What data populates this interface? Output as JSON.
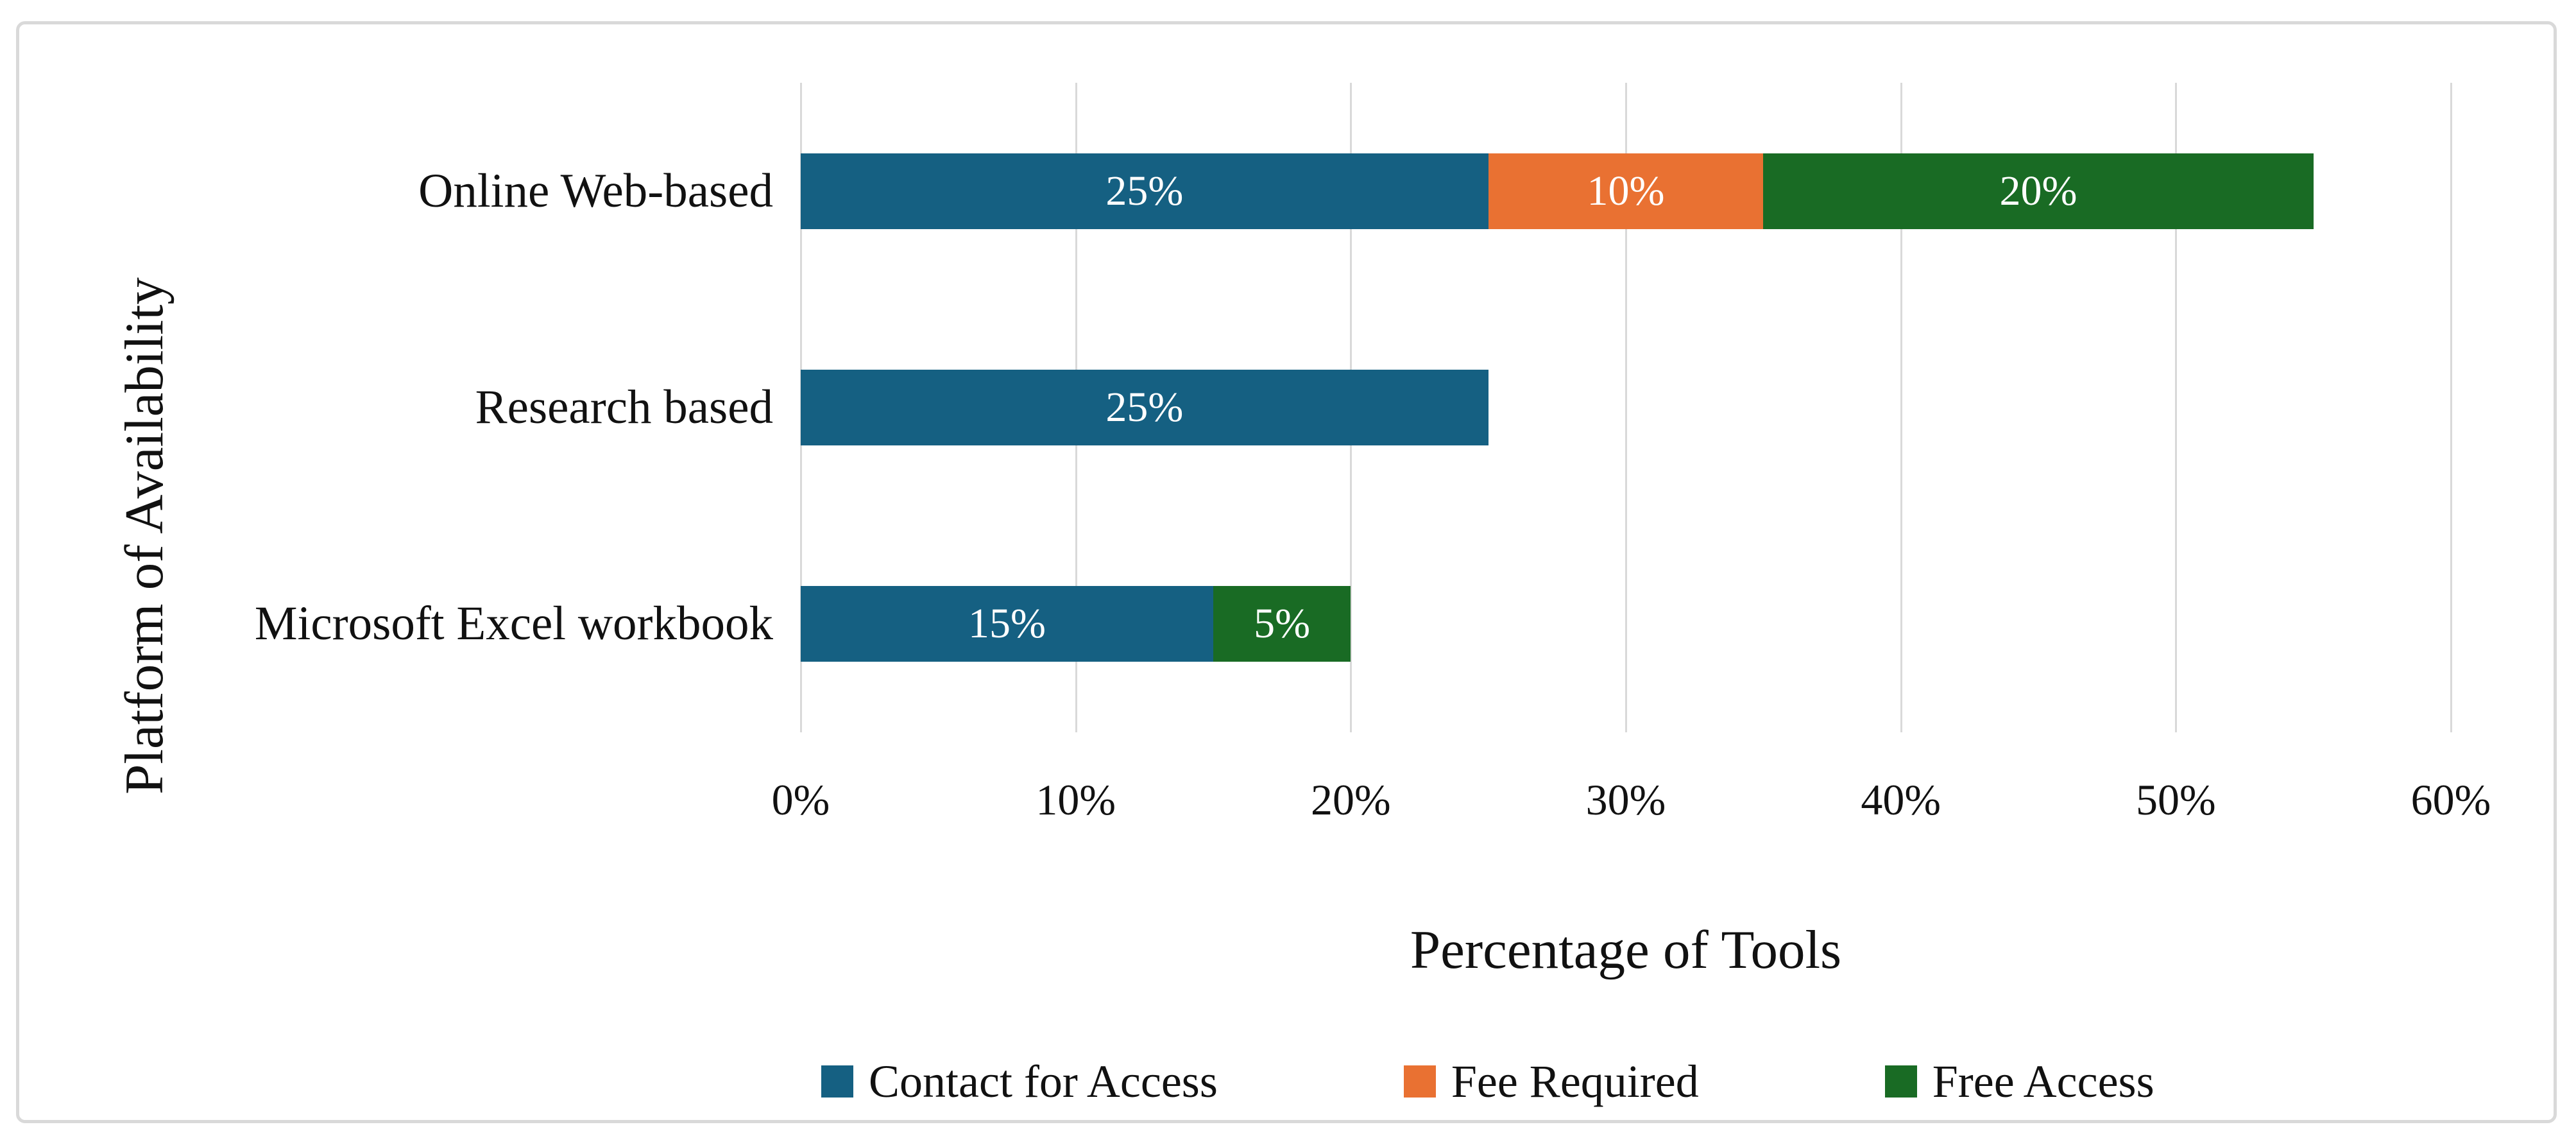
{
  "figure": {
    "background": "#ffffff",
    "border_color": "#d9d9d9"
  },
  "chart_data": {
    "type": "bar",
    "orientation": "horizontal",
    "stacked": true,
    "title": "",
    "xlabel": "Percentage of Tools",
    "ylabel": "Platform of Availability",
    "categories": [
      "Online Web-based",
      "Research based",
      "Microsoft Excel workbook"
    ],
    "series": [
      {
        "name": "Contact for Access",
        "color": "#156082",
        "values": [
          25,
          25,
          15
        ]
      },
      {
        "name": "Fee Required",
        "color": "#E97132",
        "values": [
          10,
          0,
          0
        ]
      },
      {
        "name": "Free Access",
        "color": "#196B24",
        "values": [
          20,
          0,
          5
        ]
      }
    ],
    "bar_labels": [
      [
        "25%",
        "10%",
        "20%"
      ],
      [
        "25%",
        "",
        ""
      ],
      [
        "15%",
        "",
        "5%"
      ]
    ],
    "bar_label_color": "#ffffff",
    "x_ticks": [
      "0%",
      "10%",
      "20%",
      "30%",
      "40%",
      "50%",
      "60%"
    ],
    "x_tick_values": [
      0,
      10,
      20,
      30,
      40,
      50,
      60
    ],
    "xlim": [
      0,
      60
    ],
    "grid": "vertical",
    "gridline_color": "#d9d9d9",
    "legend_position": "bottom"
  }
}
